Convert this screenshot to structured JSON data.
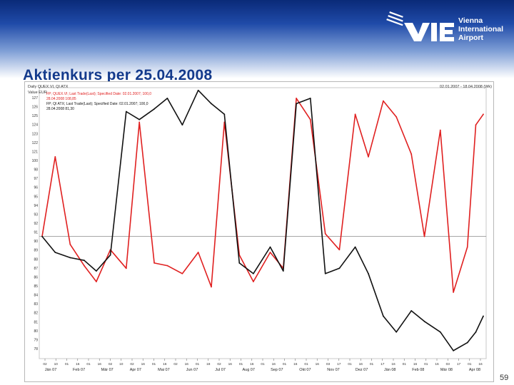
{
  "header": {
    "logo_lines": [
      "Vienna",
      "International",
      "Airport"
    ],
    "logo_wordmark": "VIE"
  },
  "slide": {
    "title": "Aktienkurs per 25.04.2008",
    "page_number": "59"
  },
  "chart_data": {
    "type": "line",
    "title": "Daily QUEX.VI, QI ATX",
    "ylabel": "Value EUR",
    "date_range": "02.01.2007 - 18.04.2008 (Wk)",
    "legend": [
      "FP; QUEX.VI; Last Trade(Last); Specified Date: 02.01.2007; 100,0",
      "28.04.2008 108,85",
      "FP; QI ATX; Last Trade(Last); Specified Date: 02.01.2007; 100,0",
      "28.04.2008 81,30"
    ],
    "legend_placement": "top-left",
    "grid": false,
    "ylim": [
      77,
      128
    ],
    "reference_line": 100,
    "y_ticks": [
      127,
      126,
      125,
      124,
      123,
      122,
      121,
      100,
      98,
      97,
      96,
      95,
      94,
      93,
      92,
      91,
      90,
      89,
      88,
      87,
      86,
      85,
      84,
      83,
      82,
      81,
      80,
      79,
      78
    ],
    "x_day_ticks": [
      "02",
      "10",
      "01",
      "16",
      "01",
      "16",
      "02",
      "10",
      "02",
      "16",
      "01",
      "16",
      "02",
      "16",
      "01",
      "18",
      "02",
      "16",
      "01",
      "16",
      "01",
      "16",
      "01",
      "16",
      "01",
      "16",
      "03",
      "17",
      "01",
      "16",
      "01",
      "17",
      "16",
      "01",
      "16",
      "01",
      "16",
      "03",
      "17",
      "01",
      "16"
    ],
    "x_month_labels": [
      "Jän 07",
      "Feb 07",
      "Mär 07",
      "Apr 07",
      "Mai 07",
      "Jun 07",
      "Jul 07",
      "Aug 07",
      "Sep 07",
      "Okt 07",
      "Nov 07",
      "Dez 07",
      "Jän 08",
      "Feb 08",
      "Mär 08",
      "Apr 08"
    ],
    "x": [
      "2007-01-02",
      "2007-01-16",
      "2007-02-01",
      "2007-02-16",
      "2007-03-01",
      "2007-03-16",
      "2007-04-02",
      "2007-04-16",
      "2007-05-02",
      "2007-05-16",
      "2007-06-01",
      "2007-06-18",
      "2007-07-02",
      "2007-07-16",
      "2007-08-01",
      "2007-08-16",
      "2007-09-03",
      "2007-09-17",
      "2007-10-01",
      "2007-10-16",
      "2007-11-01",
      "2007-11-16",
      "2007-12-03",
      "2007-12-17",
      "2008-01-02",
      "2008-01-16",
      "2008-02-01",
      "2008-02-15",
      "2008-03-03",
      "2008-03-17",
      "2008-04-01",
      "2008-04-10",
      "2008-04-18"
    ],
    "series": [
      {
        "name": "QUEX.VI",
        "color": "#e02020",
        "values": [
          100,
          115,
          98.5,
          94.5,
          91.5,
          97.5,
          94,
          121.5,
          95,
          94.5,
          93,
          97,
          90.5,
          121.5,
          96.5,
          91.5,
          97,
          94,
          126,
          122,
          100.5,
          97.5,
          123,
          115,
          125.5,
          122.5,
          115.5,
          100,
          120,
          89.5,
          98,
          121,
          123
        ]
      },
      {
        "name": "ATX",
        "color": "#111111",
        "values": [
          100,
          97,
          96,
          95.5,
          93.5,
          96.5,
          123.5,
          122,
          124,
          126,
          121,
          127.5,
          125,
          123,
          95,
          93,
          98,
          93.5,
          125,
          126,
          93,
          94,
          98,
          93,
          85,
          82,
          86,
          84,
          82,
          78.5,
          80,
          82,
          85
        ]
      }
    ]
  }
}
